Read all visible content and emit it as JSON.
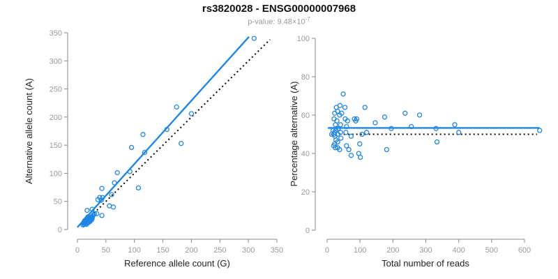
{
  "header": {
    "title": "rs3820028 - ENSG00000007968",
    "pvalue_prefix": "p-value: 9.48×10",
    "pvalue_exponent": "-7"
  },
  "colors": {
    "point_blue": "#1e86e6",
    "line_blue": "#1e86e6",
    "dotted_black": "#000000",
    "axis_gray": "#888888",
    "tick_label_gray": "#999999",
    "axis_label_dark": "#222222"
  },
  "chart_data": [
    {
      "type": "scatter",
      "xlabel": "Reference allele count (G)",
      "ylabel": "Alternative allele count (A)",
      "xlim": [
        0,
        350
      ],
      "ylim": [
        0,
        350
      ],
      "xticks": [
        0,
        50,
        100,
        150,
        200,
        250,
        300,
        350
      ],
      "yticks": [
        0,
        50,
        100,
        150,
        200,
        250,
        300,
        350
      ],
      "grid": false,
      "lines": [
        {
          "name": "regression-line",
          "x1": 0,
          "y1": 4,
          "x2": 301,
          "y2": 343,
          "color": "#1e86e6",
          "width": 2.4,
          "dash": ""
        },
        {
          "name": "identity-line",
          "x1": 8,
          "y1": 8,
          "x2": 338,
          "y2": 338,
          "color": "#000000",
          "width": 2,
          "dash": "2 4"
        }
      ],
      "points": [
        [
          310,
          340
        ],
        [
          200,
          206
        ],
        [
          174,
          218
        ],
        [
          182,
          153
        ],
        [
          157,
          178
        ],
        [
          115,
          169
        ],
        [
          118,
          137
        ],
        [
          95,
          146
        ],
        [
          107,
          74
        ],
        [
          92,
          103
        ],
        [
          70,
          101
        ],
        [
          65,
          83
        ],
        [
          60,
          62
        ],
        [
          56,
          42
        ],
        [
          63,
          40
        ],
        [
          43,
          73
        ],
        [
          39,
          57
        ],
        [
          44,
          57
        ],
        [
          36,
          53
        ],
        [
          42,
          52
        ],
        [
          34,
          28
        ],
        [
          43,
          25
        ],
        [
          26,
          36
        ],
        [
          17,
          34
        ],
        [
          10,
          8
        ],
        [
          11,
          11
        ],
        [
          12,
          9
        ],
        [
          12,
          14
        ],
        [
          13,
          12
        ],
        [
          13,
          16
        ],
        [
          14,
          10
        ],
        [
          14,
          14
        ],
        [
          15,
          12
        ],
        [
          15,
          17
        ],
        [
          16,
          9
        ],
        [
          16,
          14
        ],
        [
          16,
          19
        ],
        [
          17,
          12
        ],
        [
          17,
          16
        ],
        [
          18,
          14
        ],
        [
          18,
          19
        ],
        [
          18,
          22
        ],
        [
          19,
          12
        ],
        [
          19,
          16
        ],
        [
          20,
          14
        ],
        [
          20,
          18
        ],
        [
          20,
          23
        ],
        [
          21,
          16
        ],
        [
          21,
          20
        ],
        [
          22,
          14
        ],
        [
          22,
          18
        ],
        [
          23,
          17
        ],
        [
          23,
          21
        ],
        [
          24,
          19
        ],
        [
          25,
          17
        ],
        [
          25,
          22
        ],
        [
          26,
          20
        ],
        [
          27,
          24
        ],
        [
          28,
          26
        ],
        [
          30,
          28
        ]
      ]
    },
    {
      "type": "scatter",
      "xlabel": "Total number of reads",
      "ylabel": "Percentage alternative (A)",
      "xlim": [
        0,
        650
      ],
      "ylim": [
        0,
        100
      ],
      "xticks": [
        0,
        100,
        200,
        300,
        400,
        500,
        600
      ],
      "yticks": [
        0,
        20,
        40,
        60,
        80,
        100
      ],
      "grid": false,
      "lines": [
        {
          "name": "mean-line",
          "x1": 2,
          "y1": 53.3,
          "x2": 646,
          "y2": 53.3,
          "color": "#1e86e6",
          "width": 2.4,
          "dash": ""
        },
        {
          "name": "reference-line",
          "x1": 12,
          "y1": 50,
          "x2": 638,
          "y2": 50,
          "color": "#000000",
          "width": 2,
          "dash": "2 4"
        }
      ],
      "points": [
        [
          49,
          71
        ],
        [
          28,
          64
        ],
        [
          39,
          65
        ],
        [
          54,
          64
        ],
        [
          23,
          61
        ],
        [
          32,
          62
        ],
        [
          38,
          60
        ],
        [
          44,
          61
        ],
        [
          55,
          58
        ],
        [
          21,
          58
        ],
        [
          30,
          57
        ],
        [
          62,
          57
        ],
        [
          25,
          55
        ],
        [
          41,
          55
        ],
        [
          59,
          54
        ],
        [
          83,
          58
        ],
        [
          90,
          58
        ],
        [
          87,
          57
        ],
        [
          115,
          64
        ],
        [
          146,
          56
        ],
        [
          175,
          59
        ],
        [
          237,
          61
        ],
        [
          281,
          60
        ],
        [
          195,
          53
        ],
        [
          256,
          54
        ],
        [
          331,
          53
        ],
        [
          388,
          55
        ],
        [
          400,
          51
        ],
        [
          334,
          46
        ],
        [
          646,
          52
        ],
        [
          34,
          53
        ],
        [
          23,
          51
        ],
        [
          32,
          50
        ],
        [
          14,
          50
        ],
        [
          41,
          51
        ],
        [
          57,
          51
        ],
        [
          73,
          49
        ],
        [
          106,
          50
        ],
        [
          120,
          51
        ],
        [
          42,
          48
        ],
        [
          27,
          47
        ],
        [
          23,
          45
        ],
        [
          32,
          46
        ],
        [
          20,
          44
        ],
        [
          25,
          43
        ],
        [
          32,
          43
        ],
        [
          38,
          42
        ],
        [
          59,
          44
        ],
        [
          66,
          42
        ],
        [
          99,
          45
        ],
        [
          73,
          39
        ],
        [
          96,
          40
        ],
        [
          101,
          38
        ],
        [
          181,
          42
        ],
        [
          21,
          50
        ],
        [
          24,
          49
        ],
        [
          18,
          52
        ],
        [
          26,
          52
        ]
      ]
    }
  ]
}
